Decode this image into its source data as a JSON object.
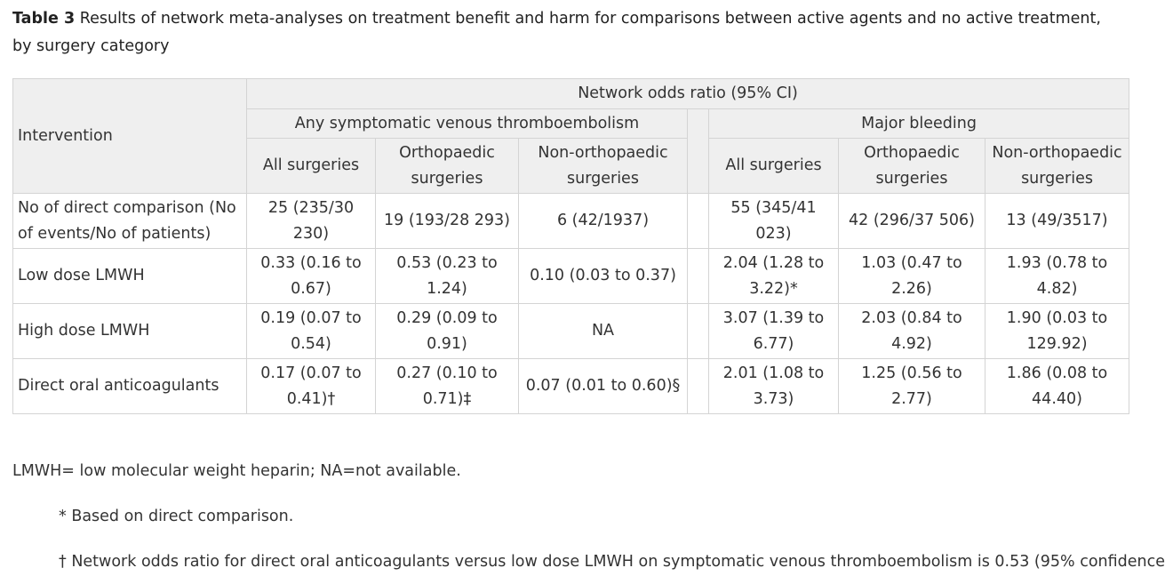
{
  "caption": {
    "label": "Table 3",
    "text": " Results of network meta-analyses on treatment benefit and harm for comparisons between active agents and no active treatment, by surgery category"
  },
  "table": {
    "intervention_header": "Intervention",
    "top_header": "Network odds ratio (95% CI)",
    "groups": [
      "Any symptomatic venous thromboembolism",
      "Major bleeding"
    ],
    "columns": [
      "All surgeries",
      "Orthopaedic surgeries",
      "Non-orthopaedic surgeries",
      "All surgeries",
      "Orthopaedic surgeries",
      "Non-orthopaedic surgeries"
    ],
    "rows": [
      {
        "label": "No of direct comparison (No of events/No of patients)",
        "cells": [
          "25 (235/30 230)",
          "19 (193/28 293)",
          "6 (42/1937)",
          "55 (345/41 023)",
          "42 (296/37 506)",
          "13 (49/3517)"
        ]
      },
      {
        "label": "Low dose LMWH",
        "cells": [
          "0.33 (0.16 to 0.67)",
          "0.53 (0.23 to 1.24)",
          "0.10 (0.03 to 0.37)",
          "2.04 (1.28 to 3.22)*",
          "1.03 (0.47 to 2.26)",
          "1.93 (0.78 to 4.82)"
        ]
      },
      {
        "label": "High dose LMWH",
        "cells": [
          "0.19 (0.07 to 0.54)",
          "0.29 (0.09 to 0.91)",
          "NA",
          "3.07 (1.39 to 6.77)",
          "2.03 (0.84 to 4.92)",
          "1.90 (0.03 to 129.92)"
        ]
      },
      {
        "label": "Direct oral anticoagulants",
        "cells": [
          "0.17 (0.07 to 0.41)†",
          "0.27 (0.10 to 0.71)‡",
          "0.07 (0.01 to 0.60)§",
          "2.01 (1.08 to 3.73)",
          "1.25 (0.56 to 2.77)",
          "1.86 (0.08 to 44.40)"
        ]
      }
    ]
  },
  "footnotes": {
    "abbrev": "LMWH= low molecular weight heparin; NA=not available.",
    "star": "* Based on direct comparison.",
    "dagger": "† Network odds ratio for direct oral anticoagulants versus low dose LMWH on symptomatic venous thromboembolism is 0.53 (95% confidence"
  }
}
